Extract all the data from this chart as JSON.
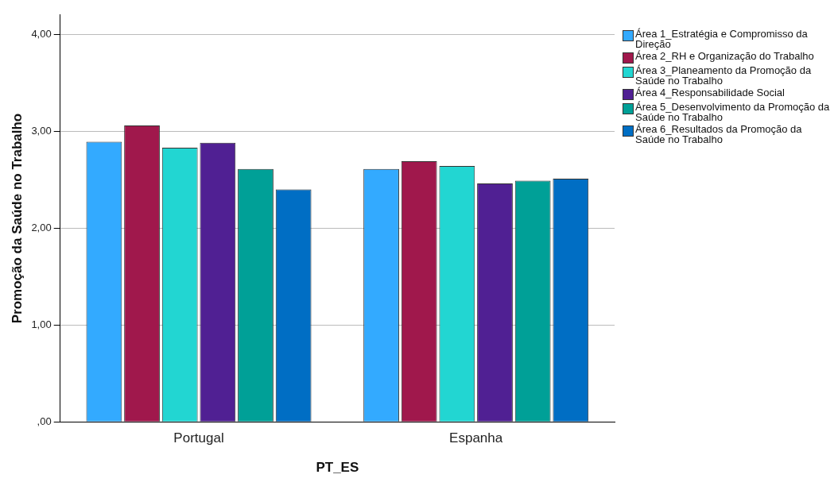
{
  "chart_data": {
    "type": "bar",
    "xlabel": "PT_ES",
    "ylabel": "Promoção da Saúde no Trabalho",
    "categories": [
      "Portugal",
      "Espanha"
    ],
    "series": [
      {
        "name": "Área 1_Estratégia e Compromisso da Direção",
        "color": "#33aaff",
        "values": [
          2.89,
          2.61
        ]
      },
      {
        "name": "Área 2_RH e Organização do Trabalho",
        "color": "#a0184c",
        "values": [
          3.06,
          2.69
        ]
      },
      {
        "name": "Área 3_Planeamento da Promoção da Saúde no Trabalho",
        "color": "#22d6d2",
        "values": [
          2.83,
          2.64
        ]
      },
      {
        "name": "Área 4_Responsabilidade Social",
        "color": "#502093",
        "values": [
          2.88,
          2.46
        ]
      },
      {
        "name": "Área 5_Desenvolvimento da Promoção da Saúde no Trabalho",
        "color": "#00a097",
        "values": [
          2.61,
          2.49
        ]
      },
      {
        "name": "Área 6_Resultados da Promoção da Saúde no Trabalho",
        "color": "#006ec4",
        "values": [
          2.4,
          2.51
        ]
      }
    ],
    "ylim": [
      0,
      4.2
    ],
    "yticks": [
      {
        "value": 0,
        "label": ",00"
      },
      {
        "value": 1,
        "label": "1,00"
      },
      {
        "value": 2,
        "label": "2,00"
      },
      {
        "value": 3,
        "label": "3,00"
      },
      {
        "value": 4,
        "label": "4,00"
      }
    ],
    "grid": "y",
    "legend": "right"
  }
}
